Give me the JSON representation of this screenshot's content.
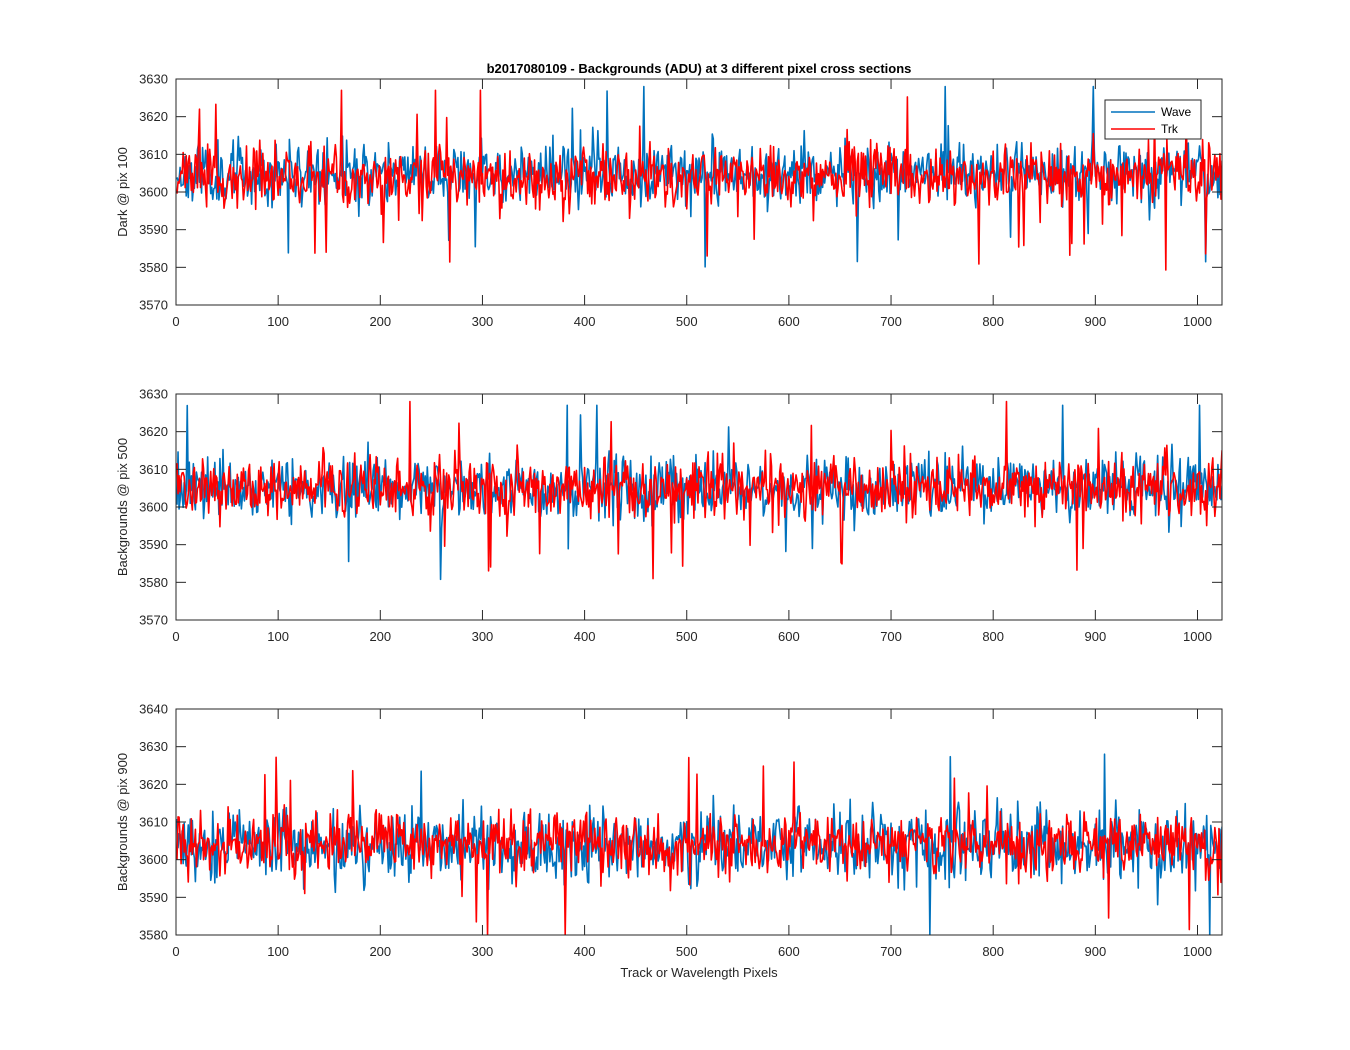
{
  "figure_title": "b2017080109 - Backgrounds (ADU) at 3 different pixel cross sections",
  "legend": {
    "placement": "top-right",
    "entries": [
      "Wave",
      "Trk"
    ]
  },
  "colors": {
    "Wave": "#0072BD",
    "Trk": "#FF0000"
  },
  "chart_data": [
    {
      "type": "line",
      "title": "b2017080109 - Backgrounds (ADU) at 3 different pixel cross sections",
      "xlabel": "",
      "ylabel": "Dark @ pix 100",
      "xlim": [
        0,
        1024
      ],
      "ylim": [
        3570,
        3630
      ],
      "xticks": [
        0,
        100,
        200,
        300,
        400,
        500,
        600,
        700,
        800,
        900,
        1000
      ],
      "yticks": [
        3570,
        3580,
        3590,
        3600,
        3610,
        3620,
        3630
      ],
      "grid": false,
      "legend": "top-right",
      "series": [
        {
          "name": "Wave",
          "color": "#0072BD",
          "points": 1024,
          "mean": 3605,
          "spread": 5,
          "min": 3579,
          "max": 3628,
          "seed": 11
        },
        {
          "name": "Trk",
          "color": "#FF0000",
          "points": 1024,
          "mean": 3604,
          "spread": 5,
          "min": 3577,
          "max": 3627,
          "seed": 23
        }
      ]
    },
    {
      "type": "line",
      "title": "",
      "xlabel": "",
      "ylabel": "Backgrounds @ pix 500",
      "xlim": [
        0,
        1024
      ],
      "ylim": [
        3570,
        3630
      ],
      "xticks": [
        0,
        100,
        200,
        300,
        400,
        500,
        600,
        700,
        800,
        900,
        1000
      ],
      "yticks": [
        3570,
        3580,
        3590,
        3600,
        3610,
        3620,
        3630
      ],
      "grid": false,
      "series": [
        {
          "name": "Wave",
          "color": "#0072BD",
          "points": 1024,
          "mean": 3605,
          "spread": 5,
          "min": 3579,
          "max": 3627,
          "seed": 37
        },
        {
          "name": "Trk",
          "color": "#FF0000",
          "points": 1024,
          "mean": 3605,
          "spread": 5,
          "min": 3581,
          "max": 3628,
          "seed": 41
        }
      ]
    },
    {
      "type": "line",
      "title": "",
      "xlabel": "Track or Wavelength Pixels",
      "ylabel": "Backgrounds @ pix 900",
      "xlim": [
        0,
        1024
      ],
      "ylim": [
        3580,
        3640
      ],
      "xticks": [
        0,
        100,
        200,
        300,
        400,
        500,
        600,
        700,
        800,
        900,
        1000
      ],
      "yticks": [
        3580,
        3590,
        3600,
        3610,
        3620,
        3630,
        3640
      ],
      "grid": false,
      "series": [
        {
          "name": "Wave",
          "color": "#0072BD",
          "points": 1024,
          "mean": 3604,
          "spread": 6,
          "min": 3580,
          "max": 3628,
          "seed": 53
        },
        {
          "name": "Trk",
          "color": "#FF0000",
          "points": 1024,
          "mean": 3604,
          "spread": 5,
          "min": 3580,
          "max": 3633,
          "seed": 67
        }
      ]
    }
  ]
}
